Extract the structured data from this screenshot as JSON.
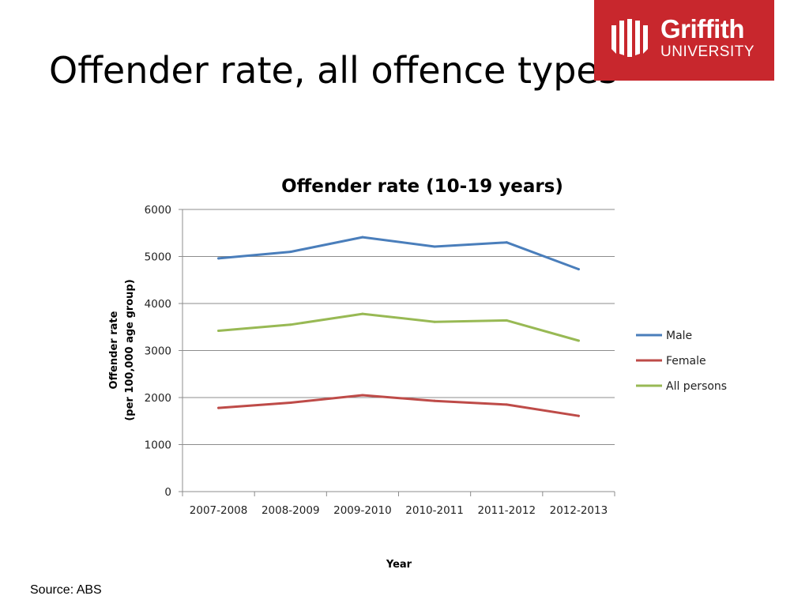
{
  "slide": {
    "title": "Offender rate, all offence types",
    "source": "Source: ABS"
  },
  "logo": {
    "name": "Griffith",
    "subtitle": "UNIVERSITY",
    "color": "#c8272d"
  },
  "chart_data": {
    "type": "line",
    "title": "Offender rate (10-19 years)",
    "xlabel": "Year",
    "ylabel": [
      "Offender rate",
      "(per 100,000 age group)"
    ],
    "categories": [
      "2007-2008",
      "2008-2009",
      "2009-2010",
      "2010-2011",
      "2011-2012",
      "2012-2013"
    ],
    "ylim": [
      0,
      6000
    ],
    "yticks": [
      0,
      1000,
      2000,
      3000,
      4000,
      5000,
      6000
    ],
    "grid": true,
    "legend_position": "right",
    "series": [
      {
        "name": "Male",
        "color": "#4a7ebb",
        "values": [
          4960,
          5100,
          5410,
          5210,
          5300,
          4730
        ]
      },
      {
        "name": "Female",
        "color": "#be4b48",
        "values": [
          1780,
          1890,
          2050,
          1930,
          1850,
          1610
        ]
      },
      {
        "name": "All persons",
        "color": "#98b954",
        "values": [
          3420,
          3550,
          3780,
          3610,
          3640,
          3210
        ]
      }
    ]
  }
}
